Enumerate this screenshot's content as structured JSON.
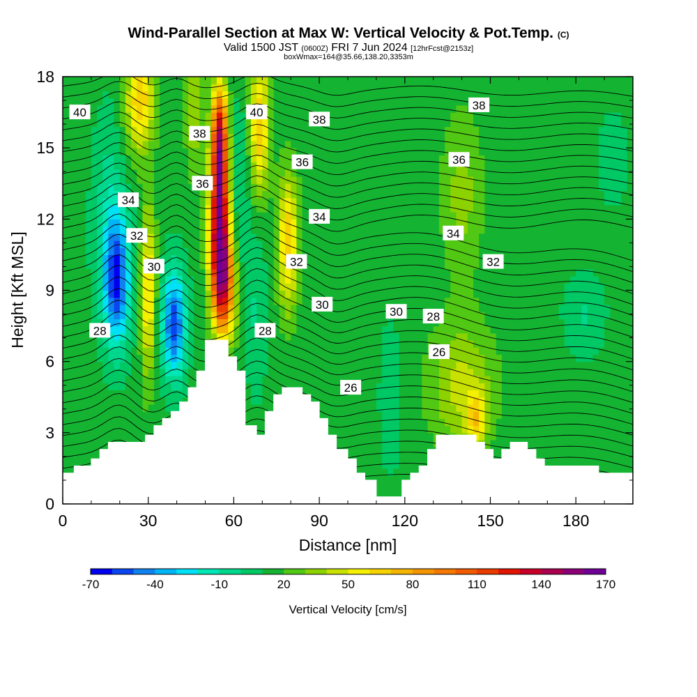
{
  "header": {
    "title_main": "Wind-Parallel Section at Max W: Vertical Velocity & Pot.Temp.",
    "title_mark": "(C)",
    "valid_prefix": "Valid 1500 JST",
    "valid_utc": "(0600Z)",
    "valid_date": "FRI 7 Jun 2024",
    "forecast": "[12hrFcst@2153z]",
    "box_info": "boxWmax=164@35.66,138.20,3353m"
  },
  "chart_data": {
    "type": "heatmap",
    "xlabel": "Distance [nm]",
    "ylabel": "Height [Kft MSL]",
    "xlim": [
      0,
      200
    ],
    "ylim": [
      0,
      18
    ],
    "x_ticks": [
      "0",
      "30",
      "60",
      "90",
      "120",
      "150",
      "180"
    ],
    "y_ticks": [
      "0",
      "3",
      "6",
      "9",
      "12",
      "15",
      "18"
    ],
    "colorbar": {
      "label": "Vertical Velocity [cm/s]",
      "tick_labels": [
        "-70",
        "-40",
        "-10",
        "20",
        "50",
        "80",
        "110",
        "140",
        "170"
      ],
      "levels": [
        -70,
        -60,
        -50,
        -40,
        -30,
        -20,
        -10,
        0,
        10,
        20,
        30,
        40,
        50,
        60,
        70,
        80,
        90,
        100,
        110,
        120,
        130,
        140,
        150,
        160,
        170
      ],
      "colors": [
        "#0000f0",
        "#0a46f0",
        "#0f82f0",
        "#00b4f5",
        "#00e1f5",
        "#00e6b4",
        "#00d78c",
        "#00c864",
        "#14b432",
        "#50c814",
        "#8cd200",
        "#c8e100",
        "#f5f000",
        "#f5d200",
        "#f5b400",
        "#f59600",
        "#f57800",
        "#f05a00",
        "#eb3c00",
        "#e11400",
        "#c80028",
        "#aa0050",
        "#8c0078",
        "#6e0096"
      ]
    },
    "wmax_cm_s": 164,
    "wmax_location": {
      "lat": 35.66,
      "lon": 138.2,
      "height_m": 3353
    },
    "terrain_kft": [
      [
        0,
        1.3
      ],
      [
        4,
        1.3
      ],
      [
        4,
        1.6
      ],
      [
        10,
        1.6
      ],
      [
        10,
        1.9
      ],
      [
        13,
        1.9
      ],
      [
        13,
        2.3
      ],
      [
        16,
        2.3
      ],
      [
        16,
        2.6
      ],
      [
        29,
        2.6
      ],
      [
        29,
        2.9
      ],
      [
        32,
        2.9
      ],
      [
        32,
        3.3
      ],
      [
        35,
        3.3
      ],
      [
        35,
        3.6
      ],
      [
        38,
        3.6
      ],
      [
        38,
        3.9
      ],
      [
        41,
        3.9
      ],
      [
        41,
        4.3
      ],
      [
        44,
        4.3
      ],
      [
        44,
        4.9
      ],
      [
        47,
        4.9
      ],
      [
        47,
        5.6
      ],
      [
        50,
        5.6
      ],
      [
        50,
        6.9
      ],
      [
        58,
        6.9
      ],
      [
        58,
        6.2
      ],
      [
        61,
        6.2
      ],
      [
        61,
        5.6
      ],
      [
        64,
        5.6
      ],
      [
        64,
        3.3
      ],
      [
        68,
        3.3
      ],
      [
        68,
        2.9
      ],
      [
        71,
        2.9
      ],
      [
        71,
        3.9
      ],
      [
        74,
        3.9
      ],
      [
        74,
        4.6
      ],
      [
        77,
        4.6
      ],
      [
        77,
        4.9
      ],
      [
        84,
        4.9
      ],
      [
        84,
        4.6
      ],
      [
        87,
        4.6
      ],
      [
        87,
        4.3
      ],
      [
        90,
        4.3
      ],
      [
        90,
        3.6
      ],
      [
        93,
        3.6
      ],
      [
        93,
        2.9
      ],
      [
        96,
        2.9
      ],
      [
        96,
        2.3
      ],
      [
        100,
        2.3
      ],
      [
        100,
        1.9
      ],
      [
        103,
        1.9
      ],
      [
        103,
        1.3
      ],
      [
        106,
        1.3
      ],
      [
        106,
        1.0
      ],
      [
        110,
        1.0
      ],
      [
        110,
        0.3
      ],
      [
        119,
        0.3
      ],
      [
        119,
        1.0
      ],
      [
        122,
        1.0
      ],
      [
        122,
        1.3
      ],
      [
        125,
        1.3
      ],
      [
        125,
        1.6
      ],
      [
        128,
        1.6
      ],
      [
        128,
        2.3
      ],
      [
        131,
        2.3
      ],
      [
        131,
        2.9
      ],
      [
        145,
        2.9
      ],
      [
        145,
        2.6
      ],
      [
        148,
        2.6
      ],
      [
        148,
        2.3
      ],
      [
        151,
        2.3
      ],
      [
        151,
        1.9
      ],
      [
        154,
        1.9
      ],
      [
        154,
        2.3
      ],
      [
        157,
        2.3
      ],
      [
        157,
        2.6
      ],
      [
        163,
        2.6
      ],
      [
        163,
        2.3
      ],
      [
        166,
        2.3
      ],
      [
        166,
        1.9
      ],
      [
        169,
        1.9
      ],
      [
        169,
        1.6
      ],
      [
        188,
        1.6
      ],
      [
        188,
        1.3
      ],
      [
        200,
        1.3
      ]
    ],
    "w_features": [
      {
        "x": 19,
        "y": 9.4,
        "w": -70,
        "sx": 3.2,
        "sy": 1.9
      },
      {
        "x": 39,
        "y": 7.6,
        "w": -70,
        "sx": 2.9,
        "sy": 1.6
      },
      {
        "x": 55,
        "y": 11.5,
        "w": 150,
        "sx": 2.4,
        "sy": 2.2
      },
      {
        "x": 55,
        "y": 15.5,
        "w": 110,
        "sx": 2.0,
        "sy": 1.6
      },
      {
        "x": 57,
        "y": 9.0,
        "w": 75,
        "sx": 2.8,
        "sy": 1.5
      },
      {
        "x": 69,
        "y": 16.0,
        "w": 55,
        "sx": 2.5,
        "sy": 2.0
      },
      {
        "x": 79,
        "y": 11.0,
        "w": 55,
        "sx": 2.5,
        "sy": 2.0
      },
      {
        "x": 30,
        "y": 9.0,
        "w": 50,
        "sx": 1.8,
        "sy": 2.5
      },
      {
        "x": 27,
        "y": 17.0,
        "w": 55,
        "sx": 3.5,
        "sy": 1.5
      },
      {
        "x": 46,
        "y": 16.5,
        "w": 25,
        "sx": 2.0,
        "sy": 1.8
      },
      {
        "x": 62,
        "y": 13.0,
        "w": -15,
        "sx": 2.5,
        "sy": 3.0
      },
      {
        "x": 68,
        "y": 8.0,
        "w": -15,
        "sx": 2.5,
        "sy": 2.5
      },
      {
        "x": 16,
        "y": 12.0,
        "w": -20,
        "sx": 4.0,
        "sy": 3.0
      },
      {
        "x": 140,
        "y": 5.0,
        "w": 30,
        "sx": 8.0,
        "sy": 1.8
      },
      {
        "x": 145,
        "y": 3.6,
        "w": 40,
        "sx": 2.5,
        "sy": 0.8
      },
      {
        "x": 115,
        "y": 4.5,
        "w": -10,
        "sx": 3.0,
        "sy": 2.5
      },
      {
        "x": 183,
        "y": 8.0,
        "w": -15,
        "sx": 5.0,
        "sy": 1.2
      },
      {
        "x": 193,
        "y": 14.5,
        "w": -10,
        "sx": 4.0,
        "sy": 1.5
      },
      {
        "x": 140,
        "y": 13.0,
        "w": 20,
        "sx": 5.0,
        "sy": 2.5
      }
    ],
    "theta_contours": [
      {
        "level": "28",
        "labels": [
          [
            13,
            7.3
          ],
          [
            71,
            7.3
          ]
        ]
      },
      {
        "level": "30",
        "labels": [
          [
            32,
            10.0
          ],
          [
            91,
            8.4
          ]
        ]
      },
      {
        "level": "32",
        "labels": [
          [
            26,
            11.3
          ],
          [
            82,
            10.2
          ],
          [
            151,
            10.2
          ]
        ]
      },
      {
        "level": "34",
        "labels": [
          [
            23,
            12.8
          ],
          [
            90,
            12.1
          ],
          [
            137,
            11.4
          ]
        ]
      },
      {
        "level": "36",
        "labels": [
          [
            49,
            13.5
          ],
          [
            84,
            14.4
          ],
          [
            139,
            14.5
          ]
        ]
      },
      {
        "level": "38",
        "labels": [
          [
            48,
            15.6
          ],
          [
            90,
            16.2
          ],
          [
            146,
            16.8
          ]
        ]
      },
      {
        "level": "40",
        "labels": [
          [
            6,
            16.5
          ],
          [
            68,
            16.5
          ]
        ]
      },
      {
        "level": "26",
        "labels": [
          [
            101,
            4.9
          ],
          [
            132,
            6.4
          ]
        ]
      },
      {
        "level": "30",
        "labels": [
          [
            117,
            8.1
          ]
        ]
      },
      {
        "level": "28",
        "labels": [
          [
            130,
            7.9
          ]
        ]
      }
    ]
  }
}
